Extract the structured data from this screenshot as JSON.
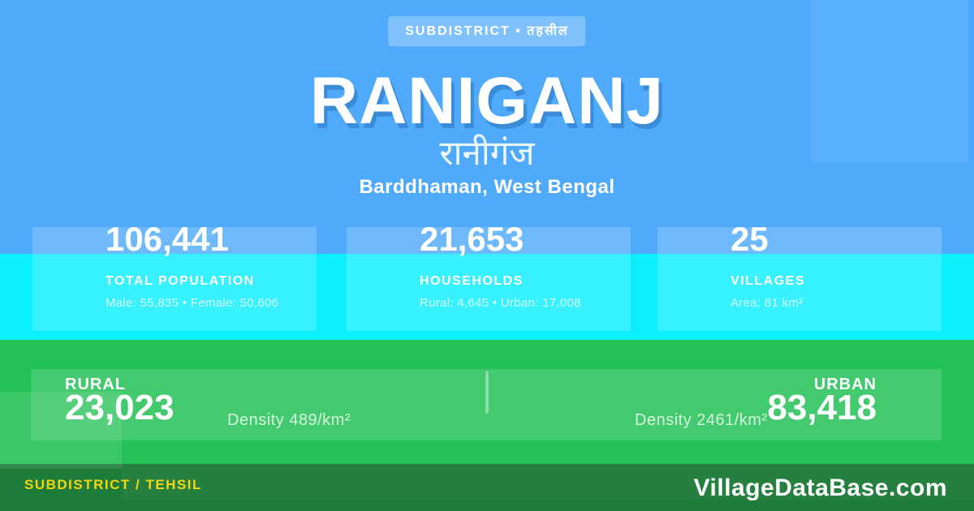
{
  "badge": {
    "label": "SUBDISTRICT • तहसील"
  },
  "title": "RANIGANJ",
  "title_local": "रानीगंज",
  "location": "Barddhaman, West Bengal",
  "stats": [
    {
      "value": "106,441",
      "label": "TOTAL POPULATION",
      "detail": "Male: 55,835 • Female: 50,606"
    },
    {
      "value": "21,653",
      "label": "HOUSEHOLDS",
      "detail": "Rural: 4,645 • Urban: 17,008"
    },
    {
      "value": "25",
      "label": "VILLAGES",
      "detail": "Area: 81 km²"
    }
  ],
  "rural_urban": {
    "rural": {
      "label": "RURAL",
      "value": "23,023",
      "density": "Density 489/km²"
    },
    "urban": {
      "label": "URBAN",
      "value": "83,418",
      "density": "Density 2461/km²"
    }
  },
  "footer": {
    "left": "SUBDISTRICT / TEHSIL",
    "right": "VillageDataBase.com"
  },
  "colors": {
    "bg_blue": "#4FAAFB",
    "cyan": "#0BEEFE",
    "green": "#23C156",
    "footer_green": "#1E7C3A",
    "yellow": "#F5D40C",
    "white": "#FFFFFF"
  }
}
